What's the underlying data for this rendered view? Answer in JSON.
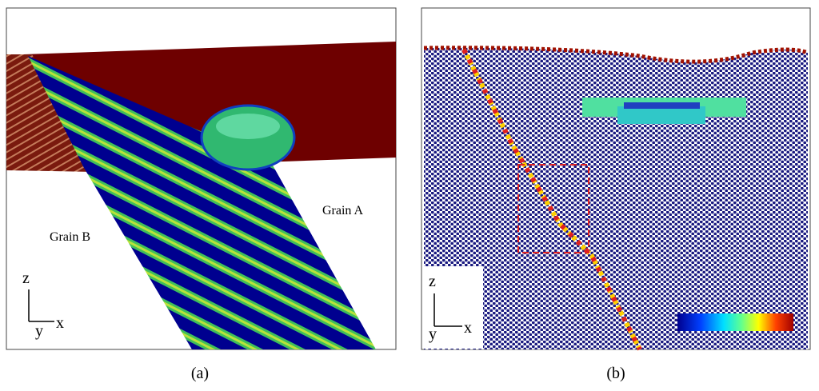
{
  "panels": [
    {
      "caption": "(a)",
      "labels": {
        "grain_a": "Grain A",
        "grain_b": "Grain B"
      },
      "axes": {
        "z": "z",
        "y": "y",
        "x": "x"
      }
    },
    {
      "caption": "(b)",
      "axes": {
        "z": "z",
        "y": "y",
        "x": "x"
      }
    }
  ]
}
